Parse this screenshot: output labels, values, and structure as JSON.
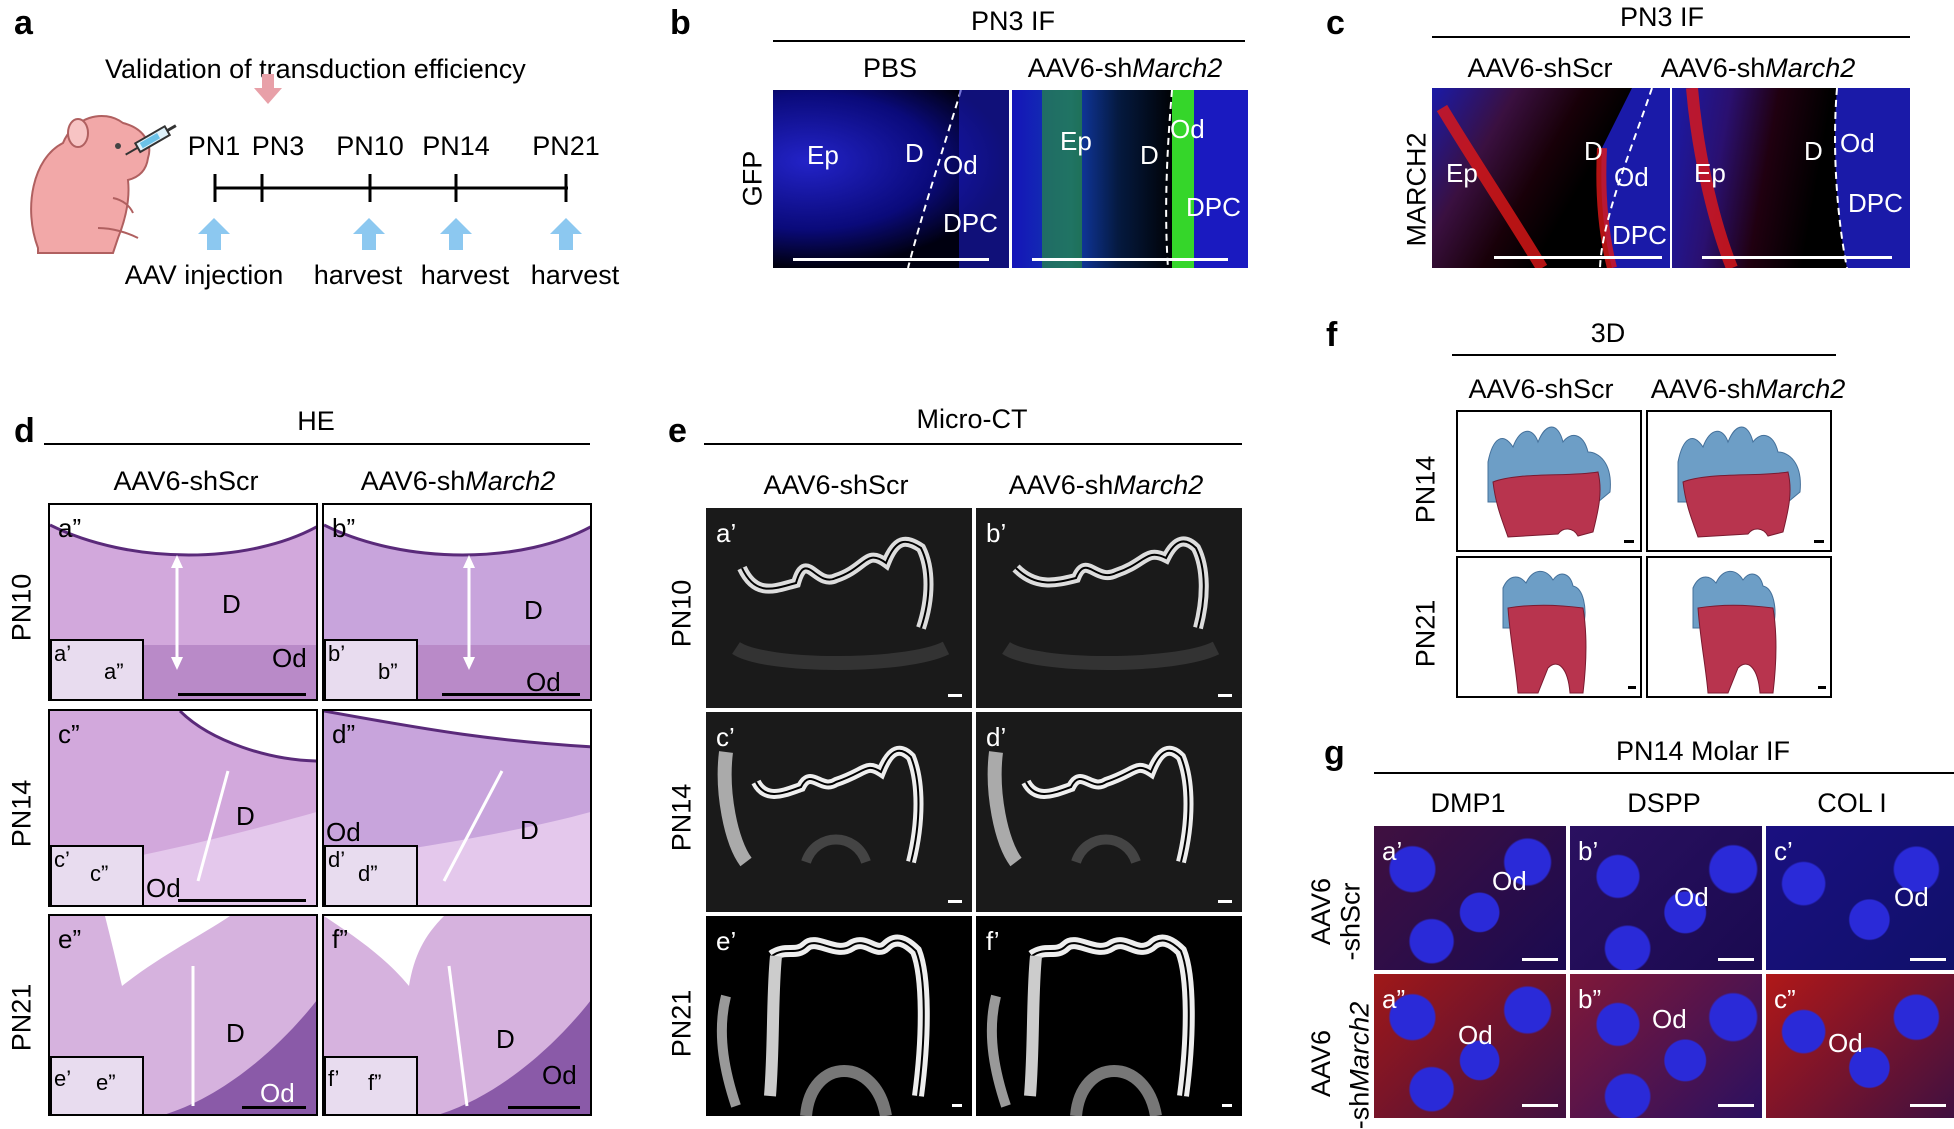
{
  "colors": {
    "if_blue": "#1a1ad6",
    "gfp_green": "#35d62a",
    "march2_red": "#e01818",
    "he_purple": "#c9a3d6",
    "arrow_blue": "#8cc8f0",
    "arrow_pink": "#e8a0a8",
    "enamel_blue": "#6d9ec6",
    "dentin_red": "#b8344e"
  },
  "panel_a": {
    "letter": "a",
    "title": "Validation of transduction efficiency",
    "timepoints": [
      "PN1",
      "PN3",
      "PN10",
      "PN14",
      "PN21"
    ],
    "events": [
      "AAV injection",
      "harvest",
      "harvest",
      "harvest"
    ],
    "icons": [
      "mouse-pup-icon",
      "syringe-icon",
      "pink-down-arrow-icon",
      "blue-up-arrow-icon"
    ]
  },
  "panel_b": {
    "letter": "b",
    "header": "PN3 IF",
    "col1": "PBS",
    "col2_prefix": "AAV6-sh",
    "col2_gene": "March2",
    "row": "GFP",
    "labels": {
      "ep": "Ep",
      "d": "D",
      "od": "Od",
      "dpc": "DPC"
    }
  },
  "panel_c": {
    "letter": "c",
    "header": "PN3 IF",
    "col1": "AAV6-shScr",
    "col2_prefix": "AAV6-sh",
    "col2_gene": "March2",
    "row": "MARCH2",
    "labels": {
      "ep": "Ep",
      "d": "D",
      "od": "Od",
      "dpc": "DPC"
    }
  },
  "panel_d": {
    "letter": "d",
    "header": "HE",
    "col1": "AAV6-shScr",
    "col2_prefix": "AAV6-sh",
    "col2_gene": "March2",
    "rows": [
      "PN10",
      "PN14",
      "PN21"
    ],
    "tiles": [
      {
        "tag": "a”",
        "inset": "a’",
        "inset_box": "a”"
      },
      {
        "tag": "b”",
        "inset": "b’",
        "inset_box": "b”"
      },
      {
        "tag": "c”",
        "inset": "c’",
        "inset_box": "c”"
      },
      {
        "tag": "d”",
        "inset": "d’",
        "inset_box": "d”"
      },
      {
        "tag": "e”",
        "inset": "e’",
        "inset_box": "e”"
      },
      {
        "tag": "f”",
        "inset": "f’",
        "inset_box": "f”"
      }
    ],
    "d": "D",
    "od": "Od"
  },
  "panel_e": {
    "letter": "e",
    "header": "Micro-CT",
    "col1": "AAV6-shScr",
    "col2_prefix": "AAV6-sh",
    "col2_gene": "March2",
    "rows": [
      "PN10",
      "PN14",
      "PN21"
    ],
    "tiles": [
      "a’",
      "b’",
      "c’",
      "d’",
      "e’",
      "f’"
    ]
  },
  "panel_f": {
    "letter": "f",
    "header": "3D",
    "col1": "AAV6-shScr",
    "col2_prefix": "AAV6-sh",
    "col2_gene": "March2",
    "rows": [
      "PN14",
      "PN21"
    ]
  },
  "panel_g": {
    "letter": "g",
    "header": "PN14 Molar IF",
    "cols": [
      "DMP1",
      "DSPP",
      "COL I"
    ],
    "row1_a": "AAV6",
    "row1_b": "-shScr",
    "row2_a": "AAV6",
    "row2_b_prefix": "-sh",
    "row2_b_gene": "March2",
    "tiles_top": [
      "a’",
      "b’",
      "c’"
    ],
    "tiles_bottom": [
      "a”",
      "b”",
      "c”"
    ],
    "od": "Od"
  }
}
